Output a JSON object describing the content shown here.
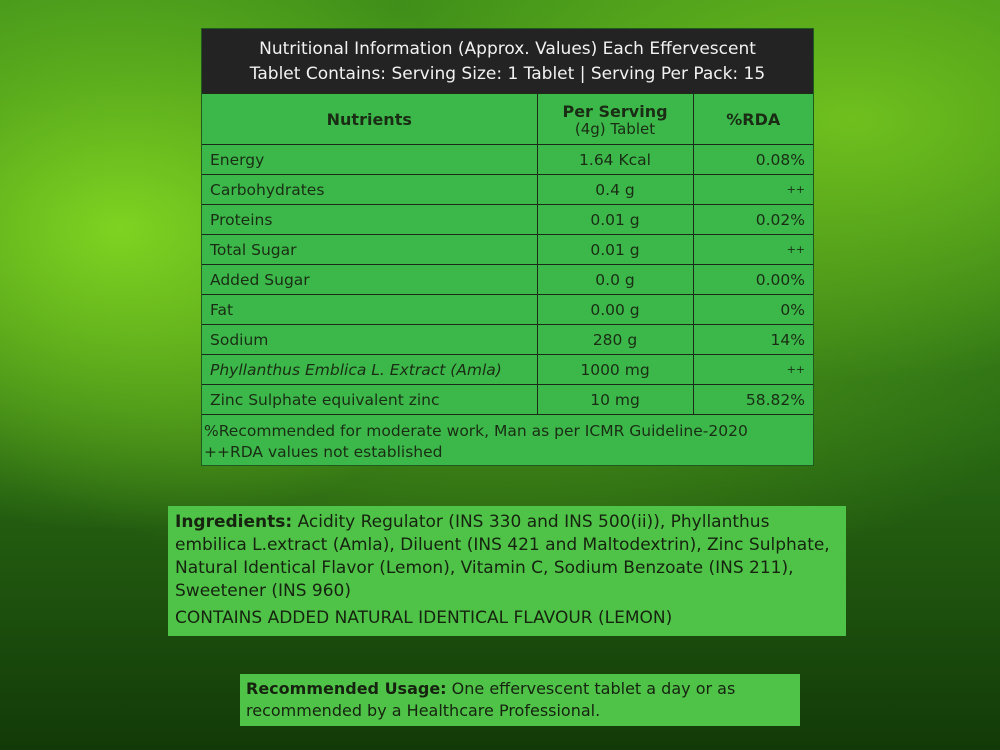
{
  "nutrition": {
    "title_line1": "Nutritional Information (Approx. Values) Each Effervescent",
    "title_line2": "Tablet Contains: Serving Size: 1 Tablet | Serving Per Pack: 15",
    "headers": {
      "nutrients": "Nutrients",
      "per_serving": "Per Serving",
      "per_serving_sub": "(4g) Tablet",
      "rda": "%RDA"
    },
    "rows": [
      {
        "name": "Energy",
        "value": "1.64 Kcal",
        "rda": "0.08%"
      },
      {
        "name": "Carbohydrates",
        "value": "0.4 g",
        "rda": "++"
      },
      {
        "name": "Proteins",
        "value": "0.01 g",
        "rda": "0.02%"
      },
      {
        "name": "Total Sugar",
        "value": "0.01 g",
        "rda": "++"
      },
      {
        "name": "Added Sugar",
        "value": "0.0 g",
        "rda": "0.00%"
      },
      {
        "name": "Fat",
        "value": "0.00 g",
        "rda": "0%"
      },
      {
        "name": "Sodium",
        "value": "280 g",
        "rda": "14%"
      },
      {
        "name": "Phyllanthus Emblica L. Extract (Amla)",
        "value": "1000 mg",
        "rda": "++"
      },
      {
        "name": "Zinc Sulphate equivalent zinc",
        "value": "10 mg",
        "rda": "58.82%"
      }
    ],
    "footnote1": "%Recommended for moderate work, Man as per ICMR Guideline-2020",
    "footnote2": "++RDA values not established"
  },
  "ingredients": {
    "label": "Ingredients:",
    "text": " Acidity Regulator (INS 330 and INS 500(ii)), Phyllanthus embilica L.extract (Amla), Diluent (INS 421 and Maltodextrin), Zinc Sulphate, Natural Identical Flavor (Lemon), Vitamin C, Sodium Benzoate (INS 211), Sweetener (INS 960)",
    "note": "CONTAINS ADDED NATURAL IDENTICAL FLAVOUR (LEMON)"
  },
  "usage": {
    "label": "Recommended Usage:",
    "text": " One effervescent tablet a day or as recommended by a Healthcare Professional."
  },
  "colors": {
    "panel_green": "#3cb84a",
    "title_bar": "#232323",
    "box_green": "#4fc348"
  }
}
